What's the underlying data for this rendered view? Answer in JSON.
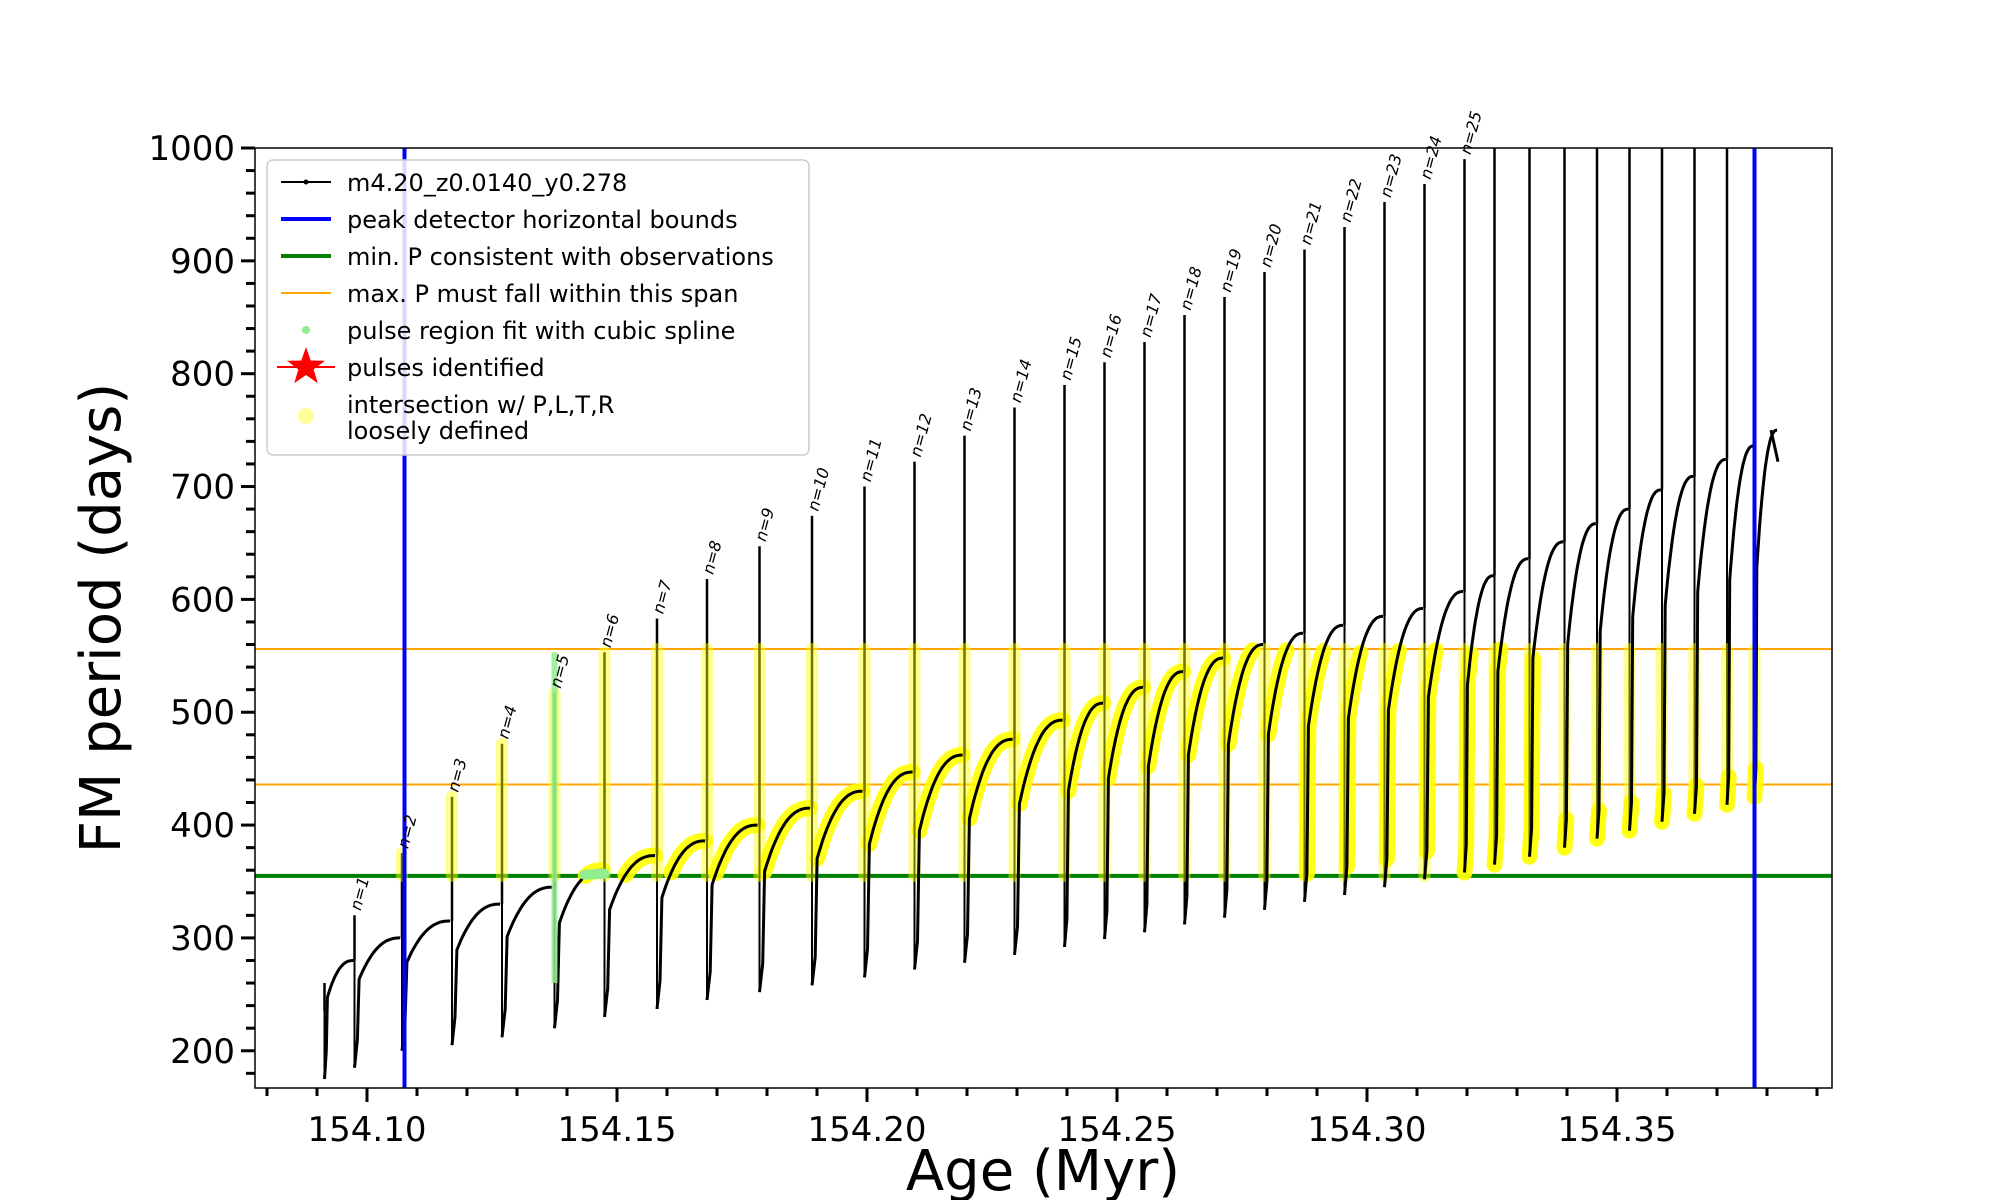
{
  "chart_data": {
    "type": "line",
    "xlabel": "Age (Myr)",
    "ylabel": "FM period (days)",
    "xlim": [
      154.0776,
      154.393
    ],
    "ylim": [
      167,
      1000
    ],
    "x_ticks": [
      154.1,
      154.15,
      154.2,
      154.25,
      154.3,
      154.35
    ],
    "x_tick_labels": [
      "154.10",
      "154.15",
      "154.20",
      "154.25",
      "154.30",
      "154.35"
    ],
    "y_ticks": [
      200,
      300,
      400,
      500,
      600,
      700,
      800,
      900,
      1000
    ],
    "y_tick_labels": [
      "200",
      "300",
      "400",
      "500",
      "600",
      "700",
      "800",
      "900",
      "1000"
    ],
    "colors": {
      "track": "#000000",
      "peak_bounds": "#0000ff",
      "min_P": "#008000",
      "max_P_span": "#ffa500",
      "spline": "#90ee90",
      "pulse_star": "#ff0000",
      "intersection": "#ffff00"
    },
    "legend": {
      "placement": "top-left",
      "entries": [
        {
          "label": "m4.20_z0.0140_y0.278",
          "marker": "line-dot",
          "color": "#000000"
        },
        {
          "label": "peak detector horizontal bounds",
          "marker": "line",
          "color": "#0000ff"
        },
        {
          "label": "min. P consistent with observations",
          "marker": "line",
          "color": "#008000"
        },
        {
          "label": "max. P must fall within this span",
          "marker": "thin-line",
          "color": "#ffa500"
        },
        {
          "label": "pulse region fit with cubic spline",
          "marker": "dot",
          "color": "#90ee90"
        },
        {
          "label": "pulses identified",
          "marker": "star",
          "color": "#ff0000"
        },
        {
          "label": "intersection w/ P,L,T,R",
          "label_line2": "loosely defined",
          "marker": "dot",
          "color": "#ffff99"
        }
      ]
    },
    "peak_detector_bounds": [
      154.1075,
      154.3775
    ],
    "min_P_observed": 355,
    "max_P_span": [
      436,
      556
    ],
    "pulse_labels": [
      "n=1",
      "n=2",
      "n=3",
      "n=4",
      "n=5",
      "n=6",
      "n=7",
      "n=8",
      "n=9",
      "n=10",
      "n=11",
      "n=12",
      "n=13",
      "n=14",
      "n=15",
      "n=16",
      "n=17",
      "n=18",
      "n=19",
      "n=20",
      "n=21",
      "n=22",
      "n=23",
      "n=24",
      "n=25"
    ],
    "pulses": {
      "spike_ages": [
        154.0915,
        154.0975,
        154.107,
        154.117,
        154.127,
        154.1375,
        154.1475,
        154.158,
        154.168,
        154.1785,
        154.189,
        154.1995,
        154.2095,
        154.2195,
        154.2295,
        154.2395,
        154.2475,
        154.2555,
        154.2635,
        154.2715,
        154.2795,
        154.2875,
        154.2955,
        154.3035,
        154.3115,
        154.3195,
        154.3255,
        154.3325,
        154.3395,
        154.346,
        154.3525,
        154.359,
        154.3655,
        154.372,
        154.3775
      ],
      "spike_peak_P": [
        260,
        320,
        375,
        425,
        472,
        517,
        553,
        583,
        618,
        647,
        674,
        700,
        722,
        745,
        770,
        790,
        810,
        828,
        852,
        868,
        890,
        910,
        930,
        952,
        968,
        990,
        1000,
        1000,
        1000,
        1000,
        1000,
        1000,
        1000,
        1000,
        1000
      ],
      "dip_P": [
        175,
        185,
        200,
        205,
        212,
        220,
        230,
        237,
        245,
        252,
        258,
        265,
        272,
        278,
        285,
        292,
        299,
        305,
        312,
        318,
        325,
        332,
        338,
        345,
        352,
        358,
        365,
        372,
        380,
        388,
        395,
        403,
        410,
        418,
        425
      ],
      "plateau_P": [
        280,
        300,
        315,
        330,
        345,
        360,
        373,
        386,
        400,
        415,
        430,
        447,
        462,
        476,
        493,
        508,
        522,
        536,
        548,
        560,
        570,
        577,
        585,
        592,
        607,
        621,
        636,
        651,
        667,
        680,
        697,
        709,
        724,
        736,
        750
      ],
      "track_end": {
        "age": 154.3822,
        "P": 722
      }
    }
  }
}
